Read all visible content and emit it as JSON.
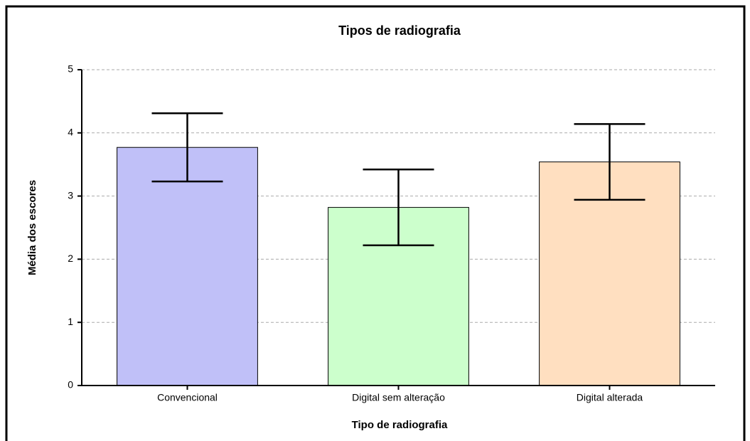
{
  "chart_data": {
    "type": "bar",
    "title": "Tipos de radiografia",
    "x_label": "Tipo de radiografia",
    "y_label": "Média dos escores",
    "categories": [
      "Convencional",
      "Digital sem alteração",
      "Digital alterada"
    ],
    "values": [
      3.77,
      2.82,
      3.54
    ],
    "errors": [
      0.54,
      0.6,
      0.6
    ],
    "colors": [
      "#c0c0f8",
      "#ccffcc",
      "#ffdfc0"
    ],
    "ylim": [
      0,
      5
    ],
    "yticks": [
      0,
      1,
      2,
      3,
      4,
      5
    ],
    "grid": true
  }
}
